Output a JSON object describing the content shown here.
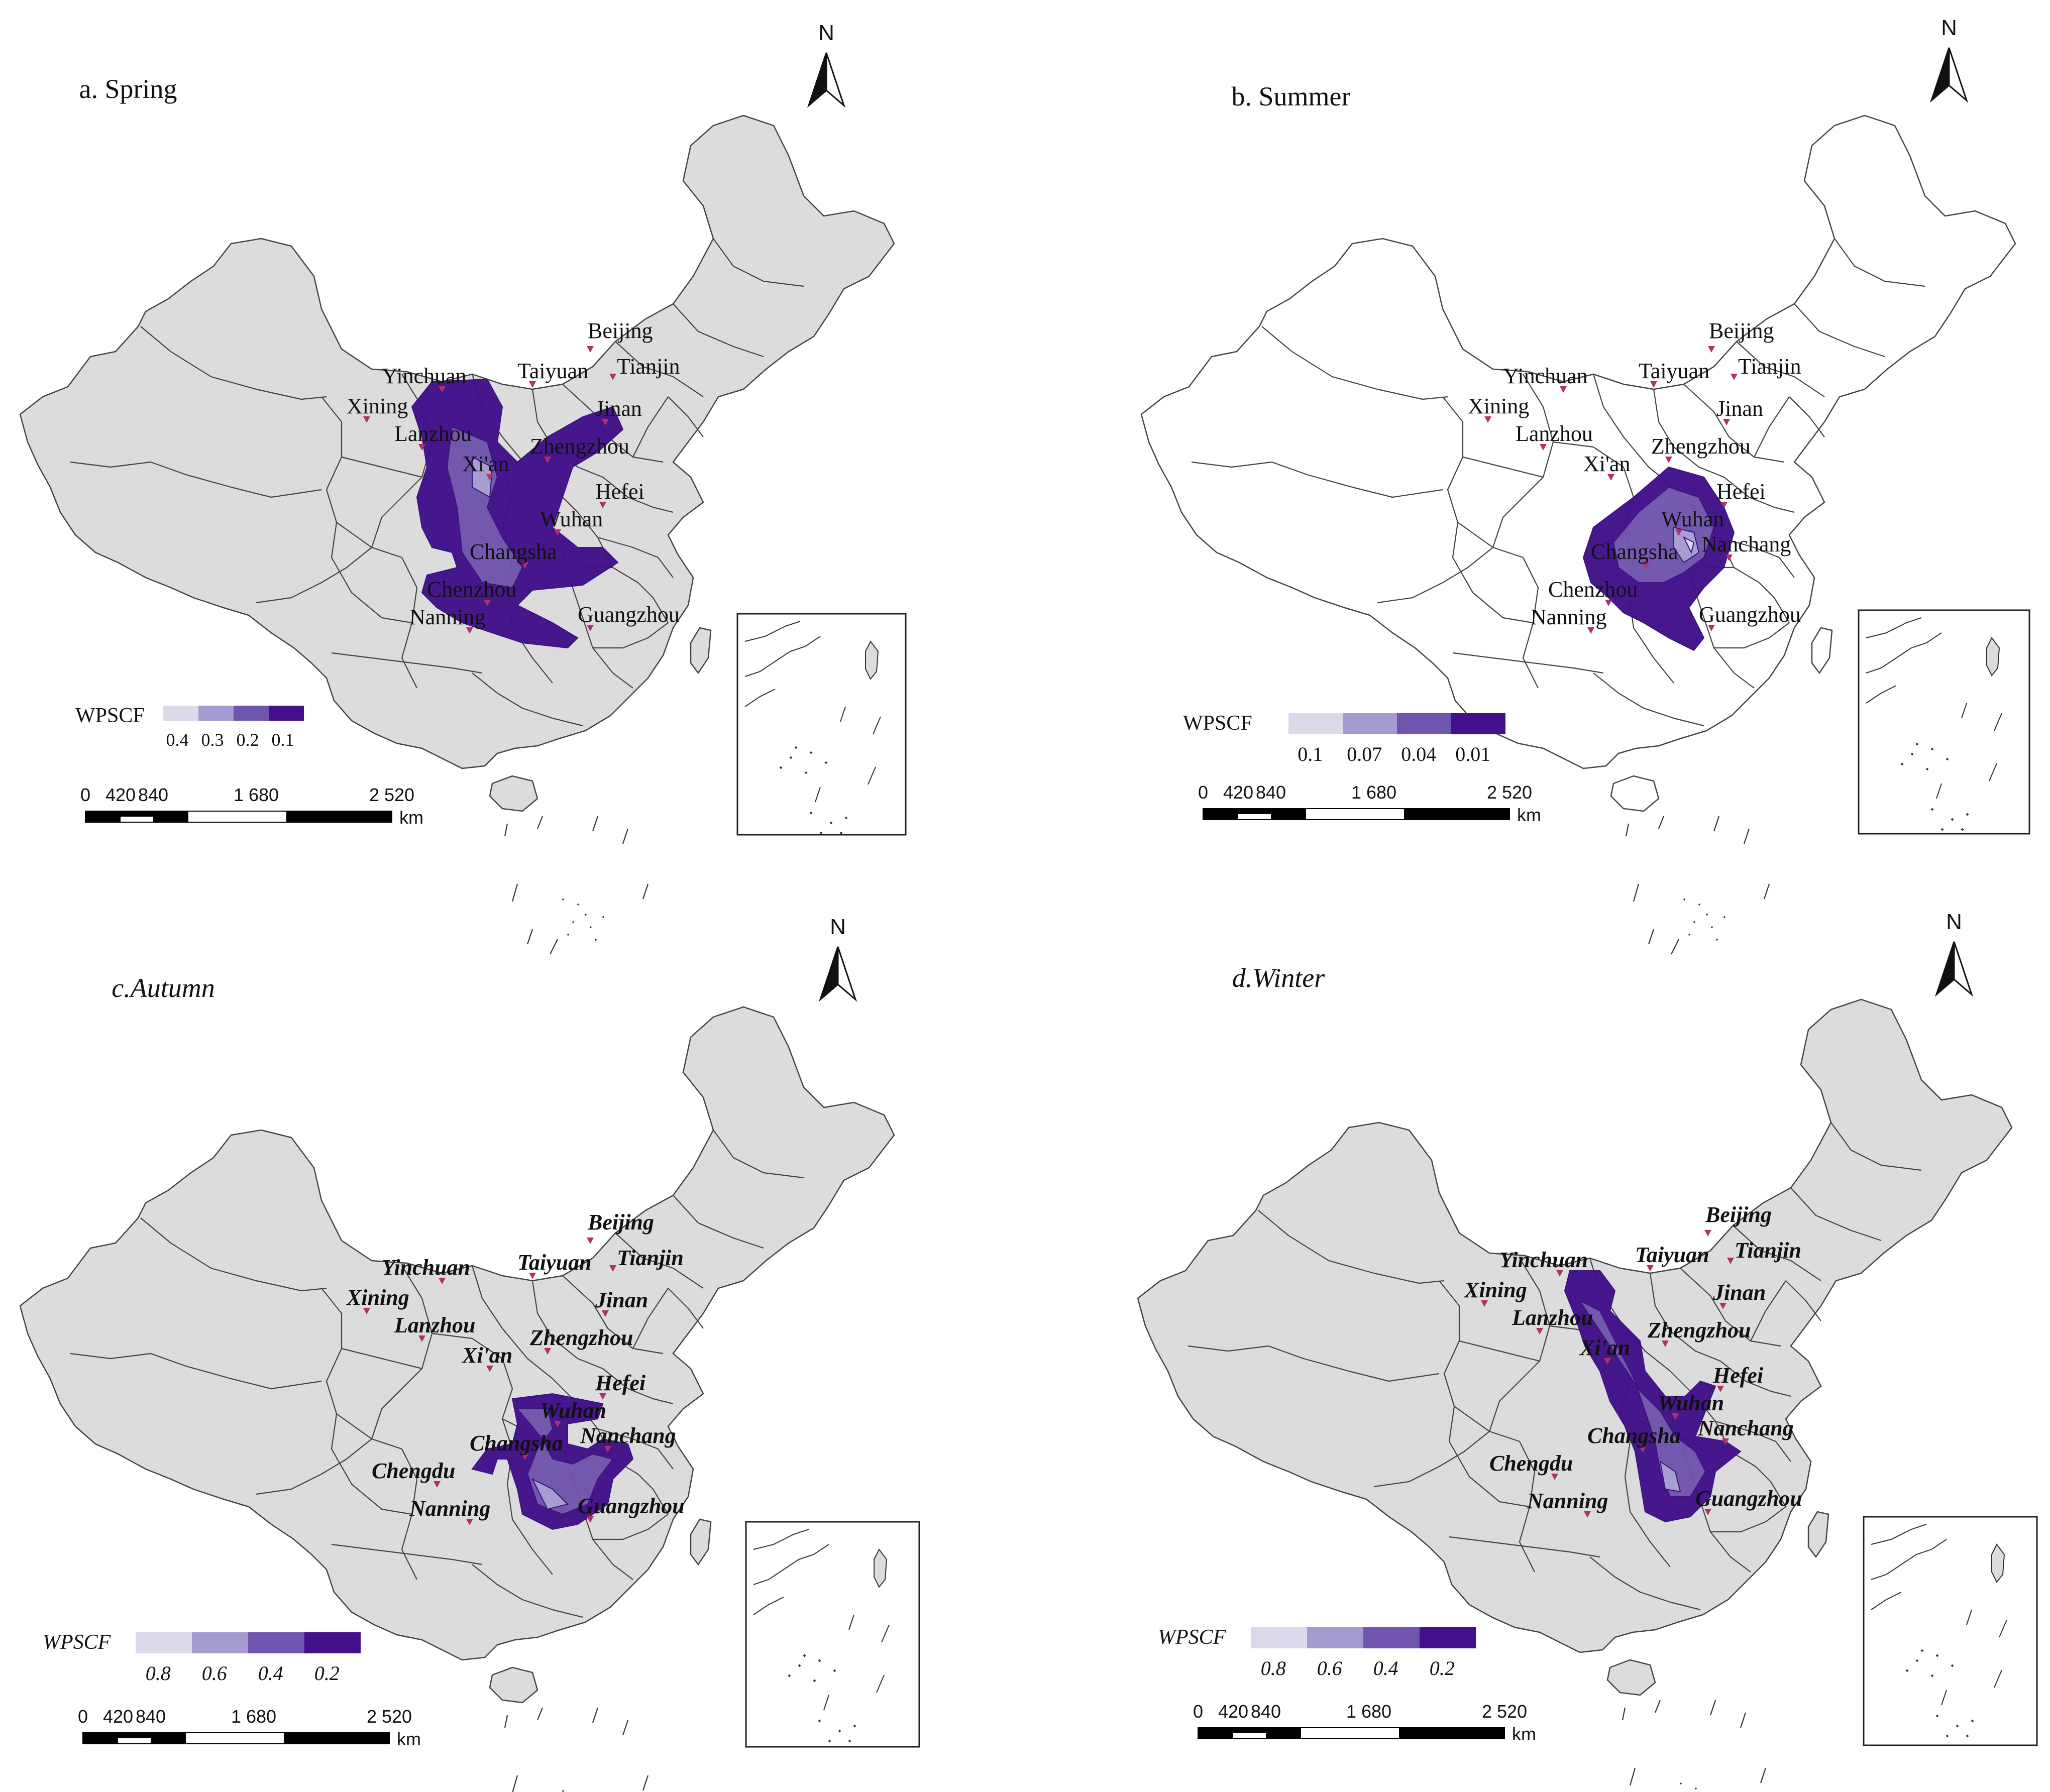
{
  "panels": [
    {
      "title": "a. Spring",
      "title_style": "normal",
      "land_fill": "#dcdcdc",
      "legend": {
        "label": "WPSCF",
        "ticks": [
          "0.4",
          "0.3",
          "0.2",
          "0.1"
        ],
        "italic": false
      },
      "cities": [
        "Beijing",
        "Tianjin",
        "Yinchuan",
        "Taiyuan",
        "Xining",
        "Lanzhou",
        "Jinan",
        "Xi'an",
        "Zhengzhou",
        "Hefei",
        "Wuhan",
        "Changsha",
        "Chenzhou",
        "Guangzhou",
        "Nanning"
      ]
    },
    {
      "title": "b. Summer",
      "title_style": "normal",
      "land_fill": "#ffffff",
      "legend": {
        "label": "WPSCF",
        "ticks": [
          "0.1",
          "0.07",
          "0.04",
          "0.01"
        ],
        "italic": false
      },
      "cities": [
        "Beijing",
        "Tianjin",
        "Yinchuan",
        "Taiyuan",
        "Xining",
        "Lanzhou",
        "Jinan",
        "Xi'an",
        "Zhengzhou",
        "Hefei",
        "Wuhan",
        "Changsha",
        "Nanchang",
        "Chenzhou",
        "Guangzhou",
        "Nanning"
      ]
    },
    {
      "title": "c.Autumn",
      "title_style": "italic",
      "land_fill": "#dcdcdc",
      "legend": {
        "label": "WPSCF",
        "ticks": [
          "0.8",
          "0.6",
          "0.4",
          "0.2"
        ],
        "italic": true
      },
      "cities": [
        "Beijing",
        "Tianjin",
        "Yinchuan",
        "Taiyuan",
        "Xining",
        "Lanzhou",
        "Jinan",
        "Xi'an",
        "Zhengzhou",
        "Hefei",
        "Wuhan",
        "Changsha",
        "Nanchang",
        "Chengdu",
        "Guangzhou",
        "Nanning"
      ]
    },
    {
      "title": "d.Winter",
      "title_style": "italic",
      "land_fill": "#dcdcdc",
      "legend": {
        "label": "WPSCF",
        "ticks": [
          "0.8",
          "0.6",
          "0.4",
          "0.2"
        ],
        "italic": true
      },
      "cities": [
        "Beijing",
        "Tianjin",
        "Yinchuan",
        "Taiyuan",
        "Xining",
        "Lanzhou",
        "Jinan",
        "Xi'an",
        "Zhengzhou",
        "Hefei",
        "Wuhan",
        "Changsha",
        "Nanchang",
        "Chengdu",
        "Guangzhou",
        "Nanning"
      ]
    }
  ],
  "scale_bar": {
    "ticks": [
      "0",
      "420",
      "840",
      "1 680",
      "2 520"
    ],
    "unit": "km"
  },
  "north_label": "N",
  "legend_colors": [
    "#dcdaea",
    "#a59bd0",
    "#6f55ad",
    "#42108a"
  ],
  "marker_color": "#b0306a"
}
